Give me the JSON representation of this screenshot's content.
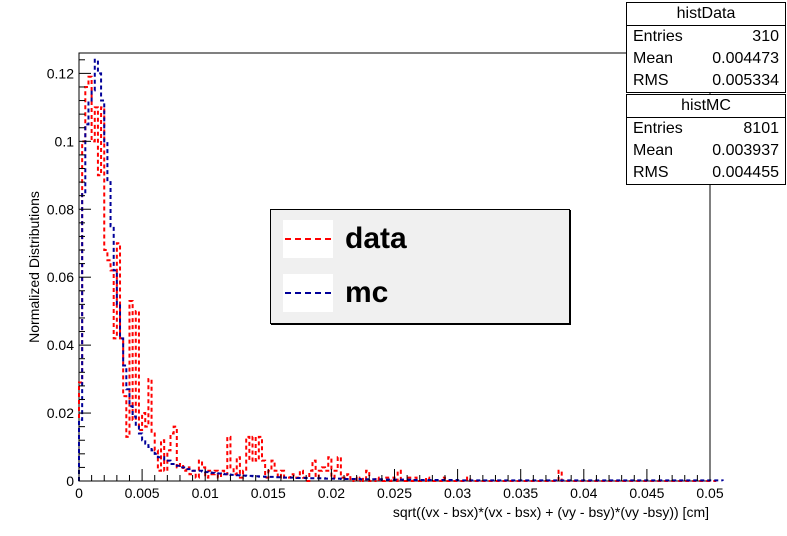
{
  "chart_data": {
    "type": "histogram-step",
    "xlabel": "sqrt((vx - bsx)*(vx - bsx) + (vy - bsy)*(vy -bsy)) [cm]",
    "ylabel": "Normalized Distributions",
    "xlim": [
      0,
      0.05
    ],
    "ylim": [
      0,
      0.126
    ],
    "xticks": [
      0,
      0.005,
      0.01,
      0.015,
      0.02,
      0.025,
      0.03,
      0.035,
      0.04,
      0.045,
      0.05
    ],
    "xtick_labels": [
      "0",
      "0.005",
      "0.01",
      "0.015",
      "0.02",
      "0.025",
      "0.03",
      "0.035",
      "0.04",
      "0.045",
      "0.05"
    ],
    "yticks": [
      0,
      0.02,
      0.04,
      0.06,
      0.08,
      0.1,
      0.12
    ],
    "ytick_labels": [
      "0",
      "0.02",
      "0.04",
      "0.06",
      "0.08",
      "0.1",
      "0.12"
    ],
    "bin_width": 0.00025,
    "series": [
      {
        "name": "data",
        "color": "#ff0000",
        "values": [
          0.029,
          0.1,
          0.116,
          0.119,
          0.1,
          0.11,
          0.09,
          0.11,
          0.068,
          0.065,
          0.062,
          0.042,
          0.07,
          0.042,
          0.025,
          0.013,
          0.053,
          0.018,
          0.05,
          0.015,
          0.02,
          0.016,
          0.03,
          0.014,
          0.009,
          0.003,
          0.012,
          0.003,
          0.009,
          0.014,
          0.016,
          0.004,
          0.005,
          0.003,
          0.004,
          0.002,
          0.003,
          0.001,
          0.006,
          0.004,
          0.001,
          0.003,
          0.002,
          0.003,
          0.001,
          0.003,
          0.002,
          0.013,
          0.004,
          0.002,
          0.007,
          0.001,
          0.003,
          0.013,
          0.006,
          0.013,
          0.006,
          0.013,
          0.006,
          0.001,
          0.003,
          0.006,
          0.003,
          0.001,
          0.003,
          0.001,
          0.001,
          0.002,
          0.001,
          0.001,
          0.003,
          0.001,
          0.0,
          0.003,
          0.006,
          0.001,
          0.003,
          0.004,
          0.003,
          0.007,
          0.001,
          0.003,
          0.007,
          0.001,
          0.001,
          0.002,
          0.0,
          0.001,
          0.0,
          0.001,
          0.0,
          0.003,
          0.0,
          0.0,
          0.001,
          0.0,
          0.0,
          0.001,
          0.0,
          0.001,
          0.0,
          0.003,
          0.0,
          0.0,
          0.001,
          0.0,
          0.001,
          0.0,
          0.0,
          0.0,
          0.001,
          0.0,
          0.0,
          0.0,
          0.0,
          0.001,
          0.0,
          0.0,
          0.0,
          0.0,
          0.0,
          0.0,
          0.0,
          0.001,
          0.0,
          0.0,
          0.0,
          0.0,
          0.0,
          0.0,
          0.0,
          0.0,
          0.0,
          0.0,
          0.0,
          0.0,
          0.0,
          0.0,
          0.0,
          0.0,
          0.0,
          0.0,
          0.0,
          0.0,
          0.0,
          0.0,
          0.0,
          0.0,
          0.0,
          0.0,
          0.0,
          0.0,
          0.003,
          0.0,
          0.0,
          0.0,
          0.0,
          0.0,
          0.0,
          0.0,
          0.0,
          0.0,
          0.0,
          0.0,
          0.0,
          0.0,
          0.0,
          0.0,
          0.0,
          0.0,
          0.0,
          0.0,
          0.0,
          0.0,
          0.0,
          0.0,
          0.0,
          0.0,
          0.0,
          0.0,
          0.0,
          0.0,
          0.0,
          0.0,
          0.0,
          0.0,
          0.0,
          0.0,
          0.0,
          0.0,
          0.0,
          0.0,
          0.0,
          0.0,
          0.0,
          0.0,
          0.0,
          0.0,
          0.0,
          0.0,
          0.0,
          0.0
        ]
      },
      {
        "name": "mc",
        "color": "#000099",
        "values": [
          0.018,
          0.085,
          0.105,
          0.112,
          0.115,
          0.124,
          0.12,
          0.112,
          0.1,
          0.088,
          0.075,
          0.062,
          0.052,
          0.042,
          0.034,
          0.027,
          0.022,
          0.019,
          0.016,
          0.014,
          0.012,
          0.011,
          0.01,
          0.009,
          0.008,
          0.007,
          0.007,
          0.006,
          0.006,
          0.005,
          0.005,
          0.0045,
          0.004,
          0.004,
          0.0035,
          0.0035,
          0.003,
          0.003,
          0.003,
          0.0028,
          0.0026,
          0.0025,
          0.0024,
          0.0023,
          0.0022,
          0.0021,
          0.002,
          0.0019,
          0.0018,
          0.0018,
          0.0017,
          0.0016,
          0.0016,
          0.0015,
          0.0015,
          0.0014,
          0.0014,
          0.0013,
          0.0013,
          0.0012,
          0.0012,
          0.0012,
          0.0011,
          0.0011,
          0.0011,
          0.001,
          0.001,
          0.001,
          0.001,
          0.0009,
          0.0009,
          0.0009,
          0.0009,
          0.0008,
          0.0008,
          0.0008,
          0.0008,
          0.0008,
          0.0007,
          0.0007,
          0.0007,
          0.0007,
          0.0007,
          0.0006,
          0.0006,
          0.0006,
          0.0006,
          0.0006,
          0.0006,
          0.0005,
          0.0005,
          0.0005,
          0.0005,
          0.0005,
          0.0005,
          0.0005,
          0.0004,
          0.0004,
          0.0004,
          0.0004,
          0.0004,
          0.0004,
          0.0004,
          0.0004,
          0.0004,
          0.0003,
          0.0003,
          0.0003,
          0.0003,
          0.0003,
          0.0003,
          0.0003,
          0.0003,
          0.0003,
          0.0003,
          0.0003,
          0.0003,
          0.0003,
          0.0003,
          0.0003,
          0.0002,
          0.0002,
          0.0002,
          0.0002,
          0.0002,
          0.0002,
          0.0002,
          0.0002,
          0.0002,
          0.0002,
          0.0002,
          0.0002,
          0.0002,
          0.0002,
          0.0002,
          0.0002,
          0.0002,
          0.0002,
          0.0002,
          0.0002,
          0.0002,
          0.0002,
          0.0002,
          0.0002,
          0.0002,
          0.0002,
          0.0002,
          0.0002,
          0.0002,
          0.0002,
          0.0002,
          0.0002,
          0.0002,
          0.0002,
          0.0002,
          0.0002,
          0.0002,
          0.0002,
          0.0002,
          0.0002,
          0.0002,
          0.0002,
          0.0002,
          0.0002,
          0.0002,
          0.0002,
          0.0002,
          0.0002,
          0.0002,
          0.0002,
          0.0002,
          0.0002,
          0.0002,
          0.0002,
          0.0002,
          0.0002,
          0.0002,
          0.0002,
          0.0002,
          0.0002,
          0.0002,
          0.0002,
          0.0002,
          0.0002,
          0.0002,
          0.0002,
          0.0002,
          0.0002,
          0.0002,
          0.0002,
          0.0002,
          0.0002,
          0.0002,
          0.0002,
          0.0002,
          0.0002,
          0.0002,
          0.0002,
          0.0002,
          0.0002,
          0.0002,
          0.0002,
          0.0002,
          0.0002
        ]
      }
    ],
    "legend": {
      "entries": [
        "data",
        "mc"
      ]
    }
  },
  "stats": [
    {
      "title": "histData",
      "rows": [
        {
          "label": "Entries",
          "value": "310"
        },
        {
          "label": "Mean",
          "value": "0.004473"
        },
        {
          "label": "RMS",
          "value": "0.005334"
        }
      ]
    },
    {
      "title": "histMC",
      "rows": [
        {
          "label": "Entries",
          "value": "8101"
        },
        {
          "label": "Mean",
          "value": "0.003937"
        },
        {
          "label": "RMS",
          "value": "0.004455"
        }
      ]
    }
  ]
}
